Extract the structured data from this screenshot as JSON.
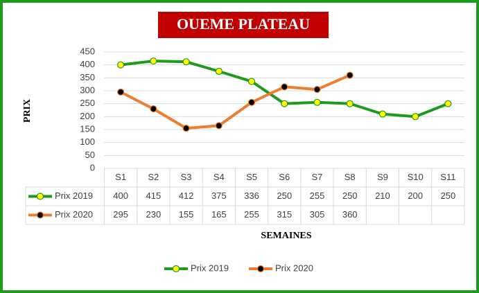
{
  "chart_data": {
    "type": "line",
    "title": "OUEME PLATEAU",
    "xlabel": "SEMAINES",
    "ylabel": "PRIX",
    "categories": [
      "S1",
      "S2",
      "S3",
      "S4",
      "S5",
      "S6",
      "S7",
      "S8",
      "S9",
      "S10",
      "S11"
    ],
    "series": [
      {
        "name": "Prix 2019",
        "color": "#1e9a1e",
        "marker_color": "#ffff00",
        "values": [
          400,
          415,
          412,
          375,
          336,
          250,
          255,
          250,
          210,
          200,
          250
        ]
      },
      {
        "name": "Prix 2020",
        "color": "#ed7d31",
        "marker_color": "#000000",
        "values": [
          295,
          230,
          155,
          165,
          255,
          315,
          305,
          360,
          null,
          null,
          null
        ]
      }
    ],
    "ylim": [
      0,
      450
    ],
    "yticks": [
      0,
      50,
      100,
      150,
      200,
      250,
      300,
      350,
      400,
      450
    ],
    "grid": true,
    "legend": "bottom"
  }
}
